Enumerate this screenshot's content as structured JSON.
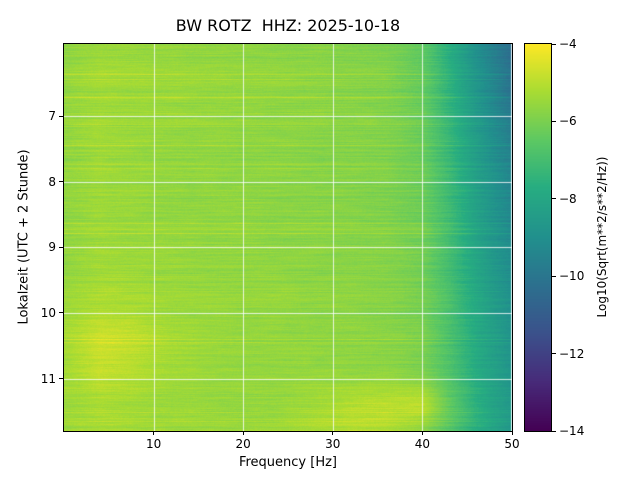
{
  "figure": {
    "title": "BW ROTZ  HHZ: 2025-10-18",
    "xlabel": "Frequency [Hz]",
    "ylabel": "Lokalzeit (UTC + 2 Stunde)",
    "colorbar_label": "Log10(Sqrt(m**2/s**2/Hz))",
    "background_color": "#ffffff",
    "grid_color": "#ffffff"
  },
  "chart_data": {
    "type": "heatmap",
    "subtype": "seismic-spectrogram",
    "title": "BW ROTZ  HHZ: 2025-10-18",
    "xlabel": "Frequency [Hz]",
    "ylabel": "Lokalzeit (UTC + 2 Stunde)",
    "colorbar_label": "Log10(Sqrt(m**2/s**2/Hz))",
    "colormap": "viridis",
    "grid": true,
    "xlim": [
      0,
      50
    ],
    "ylim": [
      5.9,
      11.8
    ],
    "y_increases_downward": true,
    "xticks": [
      10,
      20,
      30,
      40,
      50
    ],
    "yticks": [
      7,
      8,
      9,
      10,
      11
    ],
    "clim": [
      -14,
      -4
    ],
    "colorbar_ticks": [
      -4,
      -6,
      -8,
      -10,
      -12,
      -14
    ],
    "x_freq_hz": [
      0,
      4,
      8,
      12,
      16,
      20,
      24,
      28,
      32,
      36,
      40,
      43,
      46,
      48,
      50
    ],
    "y_time_h": [
      5.9,
      6.4,
      6.9,
      7.4,
      7.9,
      8.4,
      8.9,
      9.4,
      9.9,
      10.4,
      10.9,
      11.4,
      11.8
    ],
    "values": [
      [
        -5.7,
        -5.4,
        -5.5,
        -5.5,
        -5.6,
        -5.6,
        -5.7,
        -5.7,
        -5.8,
        -5.9,
        -6.4,
        -7.6,
        -8.9,
        -9.6,
        -10.3
      ],
      [
        -5.6,
        -5.3,
        -5.4,
        -5.5,
        -5.5,
        -5.6,
        -5.6,
        -5.7,
        -5.8,
        -5.9,
        -6.4,
        -7.6,
        -8.8,
        -9.5,
        -10.2
      ],
      [
        -5.6,
        -5.4,
        -5.5,
        -5.5,
        -5.6,
        -5.6,
        -5.7,
        -5.7,
        -5.8,
        -5.9,
        -6.3,
        -7.4,
        -8.6,
        -9.3,
        -10.0
      ],
      [
        -5.6,
        -5.4,
        -5.5,
        -5.6,
        -5.6,
        -5.7,
        -5.7,
        -5.8,
        -5.8,
        -5.9,
        -6.3,
        -7.3,
        -8.4,
        -9.1,
        -9.7
      ],
      [
        -5.6,
        -5.4,
        -5.5,
        -5.6,
        -5.6,
        -5.7,
        -5.7,
        -5.8,
        -5.8,
        -5.9,
        -6.2,
        -7.2,
        -8.3,
        -8.9,
        -9.5
      ],
      [
        -5.6,
        -5.4,
        -5.5,
        -5.6,
        -5.6,
        -5.6,
        -5.7,
        -5.7,
        -5.8,
        -5.9,
        -6.2,
        -7.1,
        -8.2,
        -8.8,
        -9.4
      ],
      [
        -5.6,
        -5.4,
        -5.5,
        -5.5,
        -5.6,
        -5.6,
        -5.7,
        -5.7,
        -5.8,
        -5.8,
        -6.1,
        -7.0,
        -8.1,
        -8.7,
        -9.2
      ],
      [
        -5.6,
        -5.3,
        -5.4,
        -5.5,
        -5.6,
        -5.6,
        -5.6,
        -5.7,
        -5.7,
        -5.8,
        -6.1,
        -7.0,
        -8.0,
        -8.6,
        -9.1
      ],
      [
        -5.5,
        -5.2,
        -5.3,
        -5.5,
        -5.5,
        -5.6,
        -5.6,
        -5.7,
        -5.7,
        -5.8,
        -6.1,
        -6.9,
        -7.9,
        -8.5,
        -9.0
      ],
      [
        -5.3,
        -4.7,
        -4.9,
        -5.3,
        -5.5,
        -5.6,
        -5.6,
        -5.7,
        -5.7,
        -5.8,
        -6.0,
        -6.9,
        -7.9,
        -8.4,
        -8.9
      ],
      [
        -5.4,
        -4.9,
        -5.1,
        -5.4,
        -5.5,
        -5.6,
        -5.6,
        -5.6,
        -5.7,
        -5.7,
        -6.0,
        -6.8,
        -7.8,
        -8.3,
        -8.8
      ],
      [
        -5.4,
        -5.2,
        -5.3,
        -5.4,
        -5.5,
        -5.5,
        -5.5,
        -5.3,
        -5.0,
        -4.9,
        -4.8,
        -6.3,
        -7.5,
        -8.1,
        -8.6
      ],
      [
        -5.4,
        -5.2,
        -5.3,
        -5.4,
        -5.4,
        -5.5,
        -5.4,
        -5.2,
        -5.1,
        -5.1,
        -5.7,
        -6.6,
        -7.6,
        -8.1,
        -8.6
      ]
    ]
  }
}
